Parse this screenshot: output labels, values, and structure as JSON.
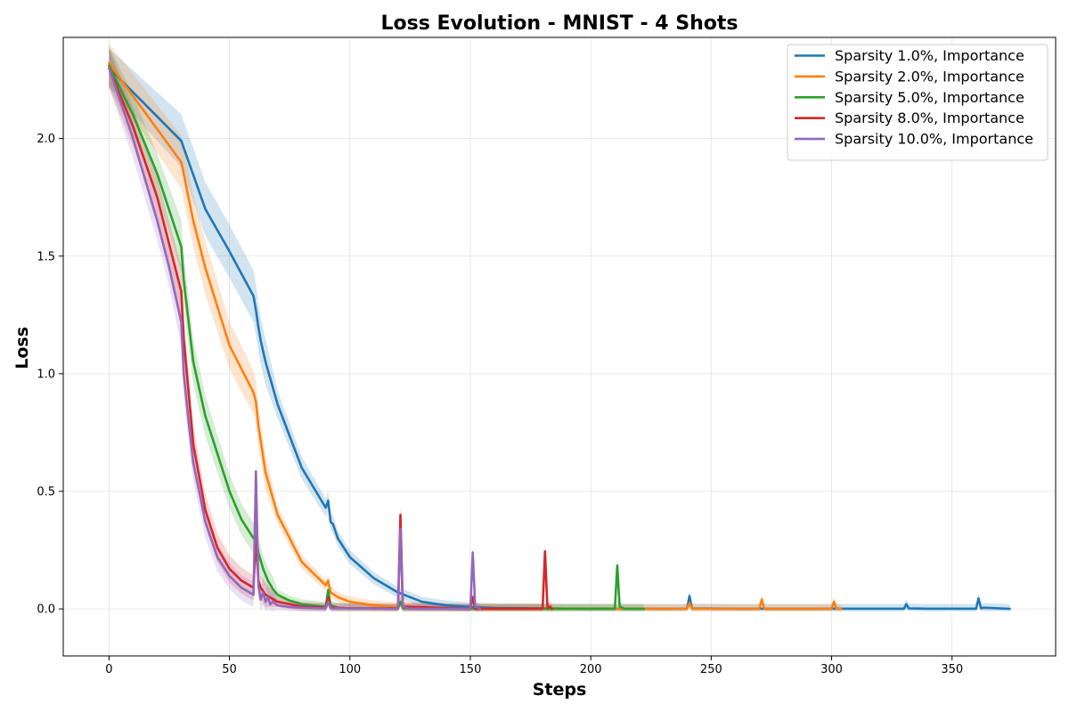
{
  "chart_data": {
    "type": "line",
    "title": "Loss Evolution - MNIST - 4 Shots",
    "xlabel": "Steps",
    "ylabel": "Loss",
    "xlim": [
      -19,
      393
    ],
    "ylim": [
      -0.2,
      2.43
    ],
    "xticks": [
      0,
      50,
      100,
      150,
      200,
      250,
      300,
      350
    ],
    "yticks": [
      0.0,
      0.5,
      1.0,
      1.5,
      2.0
    ],
    "grid": true,
    "legend_position": "top-right",
    "shaded_band": "variability around each series",
    "series": [
      {
        "name": "Sparsity 1.0%, Importance",
        "color": "#1f77b4",
        "x": [
          0,
          30,
          40,
          50,
          60,
          61,
          62,
          63,
          65,
          70,
          80,
          90,
          91,
          92,
          93,
          95,
          100,
          110,
          120,
          130,
          140,
          150,
          160,
          180,
          200,
          220,
          240,
          241,
          242,
          260,
          300,
          330,
          331,
          332,
          340,
          360,
          361,
          362,
          363,
          374
        ],
        "y": [
          2.3,
          1.99,
          1.7,
          1.52,
          1.33,
          1.27,
          1.2,
          1.14,
          1.05,
          0.87,
          0.6,
          0.43,
          0.46,
          0.37,
          0.36,
          0.3,
          0.22,
          0.13,
          0.07,
          0.03,
          0.015,
          0.008,
          0.004,
          0.002,
          0.001,
          0.001,
          0.001,
          0.055,
          0.002,
          0.001,
          0.001,
          0.001,
          0.02,
          0.002,
          0.001,
          0.001,
          0.045,
          0.002,
          0.005,
          0.0
        ]
      },
      {
        "name": "Sparsity 2.0%, Importance",
        "color": "#ff7f0e",
        "x": [
          0,
          30,
          35,
          40,
          50,
          60,
          61,
          62,
          65,
          70,
          80,
          90,
          91,
          92,
          95,
          100,
          110,
          120,
          121,
          122,
          130,
          150,
          200,
          240,
          241,
          242,
          270,
          271,
          272,
          300,
          301,
          302,
          304
        ],
        "y": [
          2.32,
          1.9,
          1.65,
          1.45,
          1.12,
          0.92,
          0.88,
          0.78,
          0.58,
          0.4,
          0.2,
          0.1,
          0.12,
          0.07,
          0.05,
          0.03,
          0.015,
          0.008,
          0.03,
          0.005,
          0.002,
          0.001,
          0.001,
          0.001,
          0.025,
          0.001,
          0.001,
          0.04,
          0.001,
          0.001,
          0.03,
          0.001,
          0.0
        ]
      },
      {
        "name": "Sparsity 5.0%, Importance",
        "color": "#2ca02c",
        "x": [
          0,
          10,
          20,
          30,
          31,
          35,
          40,
          50,
          55,
          60,
          61,
          62,
          64,
          66,
          68,
          70,
          75,
          80,
          85,
          90,
          91,
          92,
          95,
          100,
          120,
          121,
          122,
          150,
          180,
          200,
          210,
          211,
          212,
          214,
          222
        ],
        "y": [
          2.31,
          2.1,
          1.85,
          1.54,
          1.4,
          1.05,
          0.82,
          0.5,
          0.38,
          0.3,
          0.32,
          0.24,
          0.17,
          0.12,
          0.085,
          0.06,
          0.035,
          0.02,
          0.014,
          0.01,
          0.08,
          0.015,
          0.005,
          0.003,
          0.002,
          0.03,
          0.002,
          0.001,
          0.001,
          0.001,
          0.001,
          0.185,
          0.01,
          0.001,
          0.0
        ]
      },
      {
        "name": "Sparsity 8.0%, Importance",
        "color": "#d62728",
        "x": [
          0,
          10,
          20,
          30,
          31,
          35,
          40,
          45,
          50,
          55,
          60,
          61,
          62,
          63,
          65,
          70,
          80,
          90,
          91,
          92,
          100,
          120,
          121,
          122,
          150,
          151,
          152,
          180,
          181,
          182,
          183,
          184
        ],
        "y": [
          2.3,
          2.05,
          1.75,
          1.35,
          1.15,
          0.7,
          0.42,
          0.26,
          0.17,
          0.12,
          0.09,
          0.3,
          0.12,
          0.09,
          0.06,
          0.03,
          0.01,
          0.005,
          0.05,
          0.005,
          0.003,
          0.002,
          0.4,
          0.01,
          0.001,
          0.05,
          0.001,
          0.001,
          0.245,
          0.005,
          0.01,
          0.0
        ]
      },
      {
        "name": "Sparsity 10.0%, Importance",
        "color": "#9467bd",
        "x": [
          0,
          10,
          20,
          25,
          30,
          31,
          33,
          35,
          40,
          45,
          50,
          55,
          60,
          61,
          62,
          63,
          64,
          65,
          66,
          67,
          68,
          70,
          75,
          80,
          90,
          91,
          92,
          100,
          120,
          121,
          122,
          124,
          130,
          150,
          151,
          152,
          154
        ],
        "y": [
          2.3,
          2.0,
          1.65,
          1.45,
          1.22,
          1.0,
          0.8,
          0.62,
          0.37,
          0.22,
          0.14,
          0.09,
          0.06,
          0.585,
          0.1,
          0.04,
          0.07,
          0.03,
          0.05,
          0.02,
          0.03,
          0.015,
          0.008,
          0.005,
          0.002,
          0.03,
          0.003,
          0.002,
          0.001,
          0.34,
          0.01,
          0.002,
          0.001,
          0.001,
          0.24,
          0.01,
          0.0
        ]
      }
    ]
  }
}
